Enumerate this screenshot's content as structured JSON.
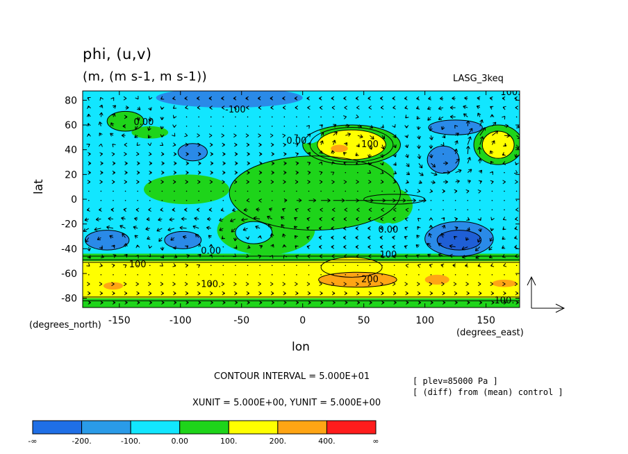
{
  "chart_data": {
    "type": "heatmap",
    "title": "phi, (u,v)",
    "units": "(m, (m s-1, m s-1))",
    "experiment": "LASG_3keq",
    "xlabel": "lon",
    "ylabel": "lat",
    "x_unit_label": "(degrees_east)",
    "y_unit_label": "(degrees_north)",
    "xlim": [
      -180,
      177.5
    ],
    "ylim": [
      -87.5,
      87.5
    ],
    "x_ticks": [
      -150,
      -100,
      -50,
      0,
      50,
      100,
      150
    ],
    "y_ticks": [
      80,
      60,
      40,
      20,
      0,
      -20,
      -40,
      -60,
      -80
    ],
    "x_tick_labels": [
      "-150",
      "-100",
      "-50",
      "0",
      "50",
      "100",
      "150"
    ],
    "y_tick_labels": [
      "80",
      "60",
      "40",
      "20",
      "0",
      "-20",
      "-40",
      "-60",
      "-80"
    ],
    "contour_interval_text": "CONTOUR INTERVAL = 5.000E+01",
    "vector_units_text": "XUNIT = 5.000E+00, YUNIT = 5.000E+00",
    "notes": [
      "[ plev=85000 Pa ]",
      "[ (diff) from (mean) control ]"
    ],
    "contour_labels": [
      {
        "text": "100.",
        "lon": 170,
        "lat": 84
      },
      {
        "text": "-100",
        "lon": -55,
        "lat": 70
      },
      {
        "text": "0.00",
        "lon": -130,
        "lat": 60
      },
      {
        "text": "0.00",
        "lon": -5,
        "lat": 45
      },
      {
        "text": "100",
        "lon": 55,
        "lat": 42
      },
      {
        "text": "0.00",
        "lon": 70,
        "lat": -27
      },
      {
        "text": "0.00",
        "lon": -75,
        "lat": -44
      },
      {
        "text": "100",
        "lon": 70,
        "lat": -47
      },
      {
        "text": "100",
        "lon": -135,
        "lat": -55
      },
      {
        "text": "100.",
        "lon": -75,
        "lat": -71
      },
      {
        "text": "200",
        "lon": 55,
        "lat": -67
      },
      {
        "text": "100.",
        "lon": 165,
        "lat": -84
      }
    ],
    "regions": [
      {
        "level": "green",
        "shape": "ellipse",
        "lon": 10,
        "lat": 5,
        "rlon": 70,
        "rlat": 30
      },
      {
        "level": "green",
        "shape": "ellipse",
        "lon": -95,
        "lat": 8,
        "rlon": 35,
        "rlat": 12
      },
      {
        "level": "green",
        "shape": "ellipse",
        "lon": -30,
        "lat": -25,
        "rlon": 40,
        "rlat": 20
      },
      {
        "level": "green",
        "shape": "ellipse",
        "lon": 45,
        "lat": 20,
        "rlon": 30,
        "rlat": 15
      },
      {
        "level": "green",
        "shape": "ellipse",
        "lon": 70,
        "lat": -5,
        "rlon": 20,
        "rlat": 15
      },
      {
        "level": "green",
        "shape": "ellipse",
        "lon": -145,
        "lat": 63,
        "rlon": 15,
        "rlat": 8
      },
      {
        "level": "green",
        "shape": "ellipse",
        "lon": -125,
        "lat": 54,
        "rlon": 15,
        "rlat": 5
      },
      {
        "level": "green",
        "shape": "ellipse",
        "lon": 160,
        "lat": 44,
        "rlon": 20,
        "rlat": 16
      },
      {
        "level": "green",
        "shape": "ellipse",
        "lon": 40,
        "lat": 44,
        "rlon": 40,
        "rlat": 16
      },
      {
        "level": "yellow",
        "shape": "ellipse",
        "lon": 40,
        "lat": 44,
        "rlon": 28,
        "rlat": 12
      },
      {
        "level": "orange",
        "shape": "ellipse",
        "lon": 30,
        "lat": 41,
        "rlon": 7,
        "rlat": 3
      },
      {
        "level": "yellow",
        "shape": "ellipse",
        "lon": 160,
        "lat": 44,
        "rlon": 13,
        "rlat": 11
      },
      {
        "level": "yellow",
        "shape": "ellipse",
        "lon": 40,
        "lat": -55,
        "rlon": 25,
        "rlat": 8
      },
      {
        "level": "cyan",
        "shape": "ellipse",
        "lon": -40,
        "lat": -27,
        "rlon": 15,
        "rlat": 9
      },
      {
        "level": "cyan",
        "shape": "ellipse",
        "lon": 5,
        "lat": 52,
        "rlon": 10,
        "rlat": 7
      },
      {
        "level": "cyan",
        "shape": "ellipse",
        "lon": 70,
        "lat": -33,
        "rlon": 10,
        "rlat": 14
      },
      {
        "level": "blue",
        "shape": "ellipse",
        "lon": -60,
        "lat": 82,
        "rlon": 60,
        "rlat": 8
      },
      {
        "level": "blue",
        "shape": "ellipse",
        "lon": 125,
        "lat": 58,
        "rlon": 22,
        "rlat": 6
      },
      {
        "level": "blue",
        "shape": "ellipse",
        "lon": -90,
        "lat": 38,
        "rlon": 12,
        "rlat": 7
      },
      {
        "level": "blue",
        "shape": "ellipse",
        "lon": 115,
        "lat": 32,
        "rlon": 13,
        "rlat": 11
      },
      {
        "level": "blue",
        "shape": "ellipse",
        "lon": 128,
        "lat": -32,
        "rlon": 28,
        "rlat": 14
      },
      {
        "level": "darkblue",
        "shape": "ellipse",
        "lon": 128,
        "lat": -33,
        "rlon": 18,
        "rlat": 8
      },
      {
        "level": "blue",
        "shape": "ellipse",
        "lon": -160,
        "lat": -33,
        "rlon": 18,
        "rlat": 8
      },
      {
        "level": "blue",
        "shape": "ellipse",
        "lon": -98,
        "lat": -33,
        "rlon": 15,
        "rlat": 7
      },
      {
        "level": "orange",
        "shape": "ellipse",
        "lon": 45,
        "lat": -65,
        "rlon": 32,
        "rlat": 6
      },
      {
        "level": "orange",
        "shape": "ellipse",
        "lon": -155,
        "lat": -70,
        "rlon": 8,
        "rlat": 3
      },
      {
        "level": "orange",
        "shape": "ellipse",
        "lon": 110,
        "lat": -65,
        "rlon": 10,
        "rlat": 4
      },
      {
        "level": "orange",
        "shape": "ellipse",
        "lon": 165,
        "lat": -68,
        "rlon": 10,
        "rlat": 3
      }
    ],
    "contours": [
      {
        "type": "ellipse",
        "lon": 10,
        "lat": 5,
        "rlon": 70,
        "rlat": 30
      },
      {
        "type": "ellipse",
        "lon": 40,
        "lat": 44,
        "rlon": 40,
        "rlat": 16
      },
      {
        "type": "ellipse",
        "lon": 40,
        "lat": 44,
        "rlon": 28,
        "rlat": 12
      },
      {
        "type": "ellipse",
        "lon": 40,
        "lat": 44,
        "rlon": 34,
        "rlat": 14
      },
      {
        "type": "ellipse",
        "lon": 160,
        "lat": 44,
        "rlon": 20,
        "rlat": 16
      },
      {
        "type": "ellipse",
        "lon": 160,
        "lat": 44,
        "rlon": 13,
        "rlat": 11
      },
      {
        "type": "ellipse",
        "lon": 128,
        "lat": -32,
        "rlon": 28,
        "rlat": 14
      },
      {
        "type": "ellipse",
        "lon": 128,
        "lat": -33,
        "rlon": 18,
        "rlat": 8
      },
      {
        "type": "ellipse",
        "lon": 115,
        "lat": 32,
        "rlon": 13,
        "rlat": 11
      },
      {
        "type": "ellipse",
        "lon": -40,
        "lat": -27,
        "rlon": 15,
        "rlat": 9
      },
      {
        "type": "ellipse",
        "lon": -145,
        "lat": 63,
        "rlon": 15,
        "rlat": 8
      },
      {
        "type": "ellipse",
        "lon": 45,
        "lat": -65,
        "rlon": 32,
        "rlat": 6
      },
      {
        "type": "ellipse",
        "lon": 40,
        "lat": -55,
        "rlon": 25,
        "rlat": 8
      },
      {
        "type": "ellipse",
        "lon": 75,
        "lat": 0,
        "rlon": 25,
        "rlat": 4
      },
      {
        "type": "ellipse",
        "lon": -160,
        "lat": -33,
        "rlon": 18,
        "rlat": 8
      },
      {
        "type": "ellipse",
        "lon": -98,
        "lat": -33,
        "rlon": 15,
        "rlat": 7
      },
      {
        "type": "ellipse",
        "lon": 125,
        "lat": 58,
        "rlon": 22,
        "rlat": 6
      },
      {
        "type": "ellipse",
        "lon": -90,
        "lat": 38,
        "rlon": 12,
        "rlat": 7
      },
      {
        "type": "hline",
        "lat": -46
      },
      {
        "type": "hline",
        "lat": -49
      },
      {
        "type": "hline",
        "lat": -51
      },
      {
        "type": "hline",
        "lat": -79
      },
      {
        "type": "hline",
        "lat": -82
      }
    ],
    "bands": [
      {
        "level": "green",
        "lat_top": -44,
        "lat_bottom": -50
      },
      {
        "level": "yellow",
        "lat_top": -50,
        "lat_bottom": -80
      },
      {
        "level": "green",
        "lat_top": -80,
        "lat_bottom": -87.5
      }
    ],
    "vector_field": {
      "lon_step": 10,
      "lat_step": 7.5,
      "jet_lat": 0,
      "jet_lon_range": [
        -20,
        100
      ]
    }
  },
  "colorbar": {
    "colors": [
      "#1f6fe6",
      "#2a9be8",
      "#12e6ff",
      "#1ed41a",
      "#ffff00",
      "#ffa514",
      "#ff1c1c"
    ],
    "labels": [
      "-∞",
      "-200.",
      "-100.",
      "0.00",
      "100.",
      "200.",
      "400.",
      "∞"
    ]
  },
  "palette": {
    "darkblue": "#1f5fd6",
    "blue": "#2a8ae8",
    "cyan": "#12e6ff",
    "green": "#1ed41a",
    "yellow": "#ffff00",
    "orange": "#ffa514",
    "red": "#ff1c1c"
  }
}
